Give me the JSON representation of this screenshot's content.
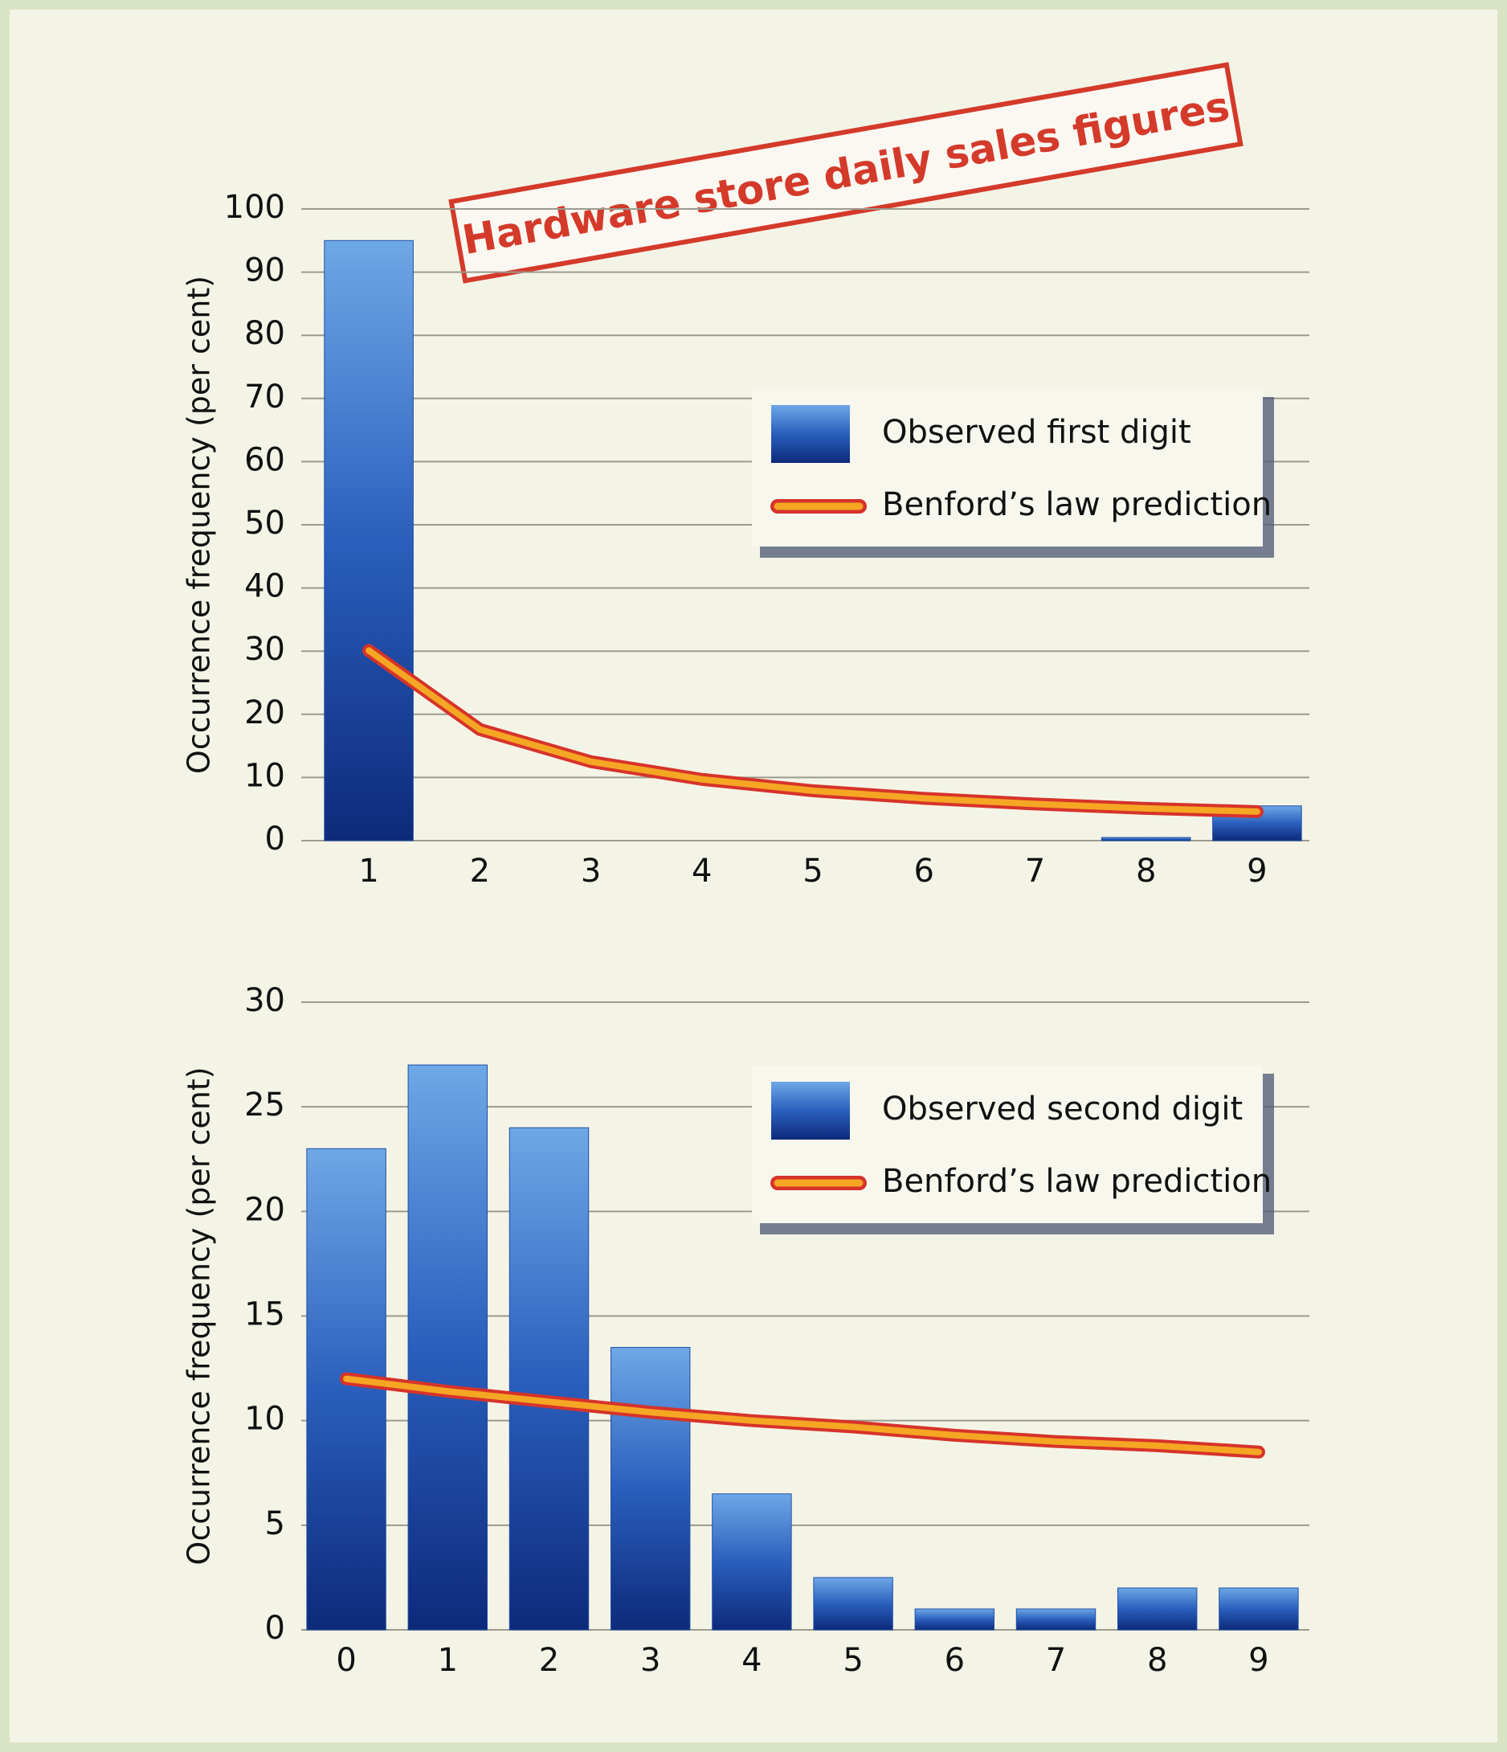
{
  "chart_data": [
    {
      "type": "bar",
      "title": "Hardware store daily sales figures",
      "y_label": "Occurrence frequency (per cent)",
      "categories": [
        "1",
        "2",
        "3",
        "4",
        "5",
        "6",
        "7",
        "8",
        "9"
      ],
      "series": [
        {
          "name": "Observed first digit",
          "type": "bar",
          "color": "#1f4fa8",
          "values": [
            95,
            0,
            0,
            0,
            0,
            0,
            0,
            0.5,
            5.5
          ]
        },
        {
          "name": "Benford’s law prediction",
          "type": "line",
          "color": "#f5a623",
          "values": [
            30.1,
            17.6,
            12.5,
            9.7,
            7.9,
            6.7,
            5.8,
            5.1,
            4.6
          ]
        }
      ],
      "ylim": [
        0,
        100
      ],
      "yticks": [
        0,
        10,
        20,
        30,
        40,
        50,
        60,
        70,
        80,
        90,
        100
      ],
      "grid": true,
      "legend": "upper right"
    },
    {
      "type": "bar",
      "y_label": "Occurrence frequency (per cent)",
      "categories": [
        "0",
        "1",
        "2",
        "3",
        "4",
        "5",
        "6",
        "7",
        "8",
        "9"
      ],
      "series": [
        {
          "name": "Observed second digit",
          "type": "bar",
          "color": "#1f4fa8",
          "values": [
            23,
            27,
            24,
            13.5,
            6.5,
            2.5,
            1,
            1,
            2,
            2
          ]
        },
        {
          "name": "Benford’s law prediction",
          "type": "line",
          "color": "#f5a623",
          "values": [
            12.0,
            11.4,
            10.9,
            10.4,
            10.0,
            9.7,
            9.3,
            9.0,
            8.8,
            8.5
          ]
        }
      ],
      "ylim": [
        0,
        30
      ],
      "yticks": [
        0,
        5,
        10,
        15,
        20,
        25,
        30
      ],
      "grid": true,
      "legend": "upper right"
    }
  ]
}
